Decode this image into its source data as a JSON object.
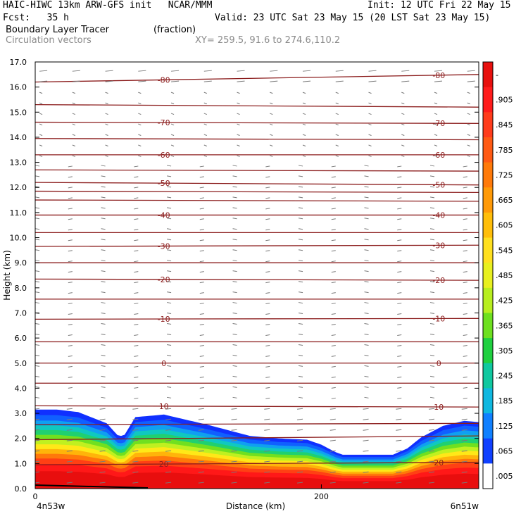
{
  "header": {
    "line1_left": "HAIC-HIWC 13km ARW-GFS init   NCAR/MMM",
    "line1_right": "Init: 12 UTC Fri 22 May 15",
    "line2_left": "Fcst:   35 h",
    "line2_right": "Valid: 23 UTC Sat 23 May 15 (20 LST Sat 23 May 15)",
    "field_name": "Boundary Layer Tracer",
    "field_units": "(fraction)",
    "overlay_name": "Circulation vectors",
    "xy_label": "XY= 259.5, 91.6 to 274.6,110.2"
  },
  "colors": {
    "contour": "#8b1c1c",
    "vector": "#7a7a7a",
    "ground": "#000000"
  },
  "chart_data": {
    "type": "heatmap",
    "xlabel": "Distance (km)",
    "ylabel": "Height (km)",
    "xlim": [
      0,
      310
    ],
    "ylim": [
      0,
      17
    ],
    "x_ticks": [
      0,
      200
    ],
    "x_tick_labels": [
      "0",
      "200"
    ],
    "x_end_labels": [
      "4n53w",
      "6n51w"
    ],
    "y_ticks": [
      0,
      1,
      2,
      3,
      4,
      5,
      6,
      7,
      8,
      9,
      10,
      11,
      12,
      13,
      14,
      15,
      16,
      17
    ],
    "y_tick_labels": [
      "0.0",
      "1.0",
      "2.0",
      "3.0",
      "4.0",
      "5.0",
      "6.0",
      "7.0",
      "8.0",
      "9.0",
      "10.0",
      "11.0",
      "12.0",
      "13.0",
      "14.0",
      "15.0",
      "16.0",
      "17.0"
    ],
    "colorbar": {
      "labels": [
        "-",
        ".905",
        ".845",
        ".785",
        ".725",
        ".665",
        ".605",
        ".545",
        ".485",
        ".425",
        ".365",
        ".305",
        ".245",
        ".185",
        ".125",
        ".065",
        ".005"
      ],
      "colors": [
        "#e8100e",
        "#ff1c1c",
        "#ff3c1c",
        "#ff5a14",
        "#ff7a0a",
        "#ff9a08",
        "#ffbe0a",
        "#ffe020",
        "#e8f020",
        "#b8ee20",
        "#6ee020",
        "#20d040",
        "#10c8a0",
        "#10b8e0",
        "#1080ff",
        "#1040ff",
        "#ffffff"
      ]
    },
    "tracer_top_km": {
      "x_km": [
        0,
        15,
        30,
        50,
        58,
        62,
        70,
        90,
        120,
        150,
        170,
        190,
        200,
        210,
        215,
        230,
        250,
        260,
        270,
        285,
        300,
        310
      ],
      "top": [
        3.15,
        3.15,
        3.05,
        2.6,
        2.1,
        2.1,
        2.85,
        2.95,
        2.55,
        2.1,
        2.0,
        1.95,
        1.75,
        1.45,
        1.35,
        1.35,
        1.35,
        1.6,
        2.05,
        2.5,
        2.7,
        2.65
      ]
    },
    "temperature_contours_C": [
      {
        "label": "20",
        "km": [
          0.95,
          1.05
        ]
      },
      {
        "label": "10",
        "km": [
          3.3,
          3.25
        ]
      },
      {
        "label": "0",
        "km": [
          5.0,
          5.0
        ]
      },
      {
        "label": "-10",
        "km": [
          6.75,
          6.78
        ]
      },
      {
        "label": "-20",
        "km": [
          8.35,
          8.3
        ]
      },
      {
        "label": "-30",
        "km": [
          9.65,
          9.7
        ]
      },
      {
        "label": "-40",
        "km": [
          10.9,
          10.9
        ]
      },
      {
        "label": "-50",
        "km": [
          12.2,
          12.1
        ]
      },
      {
        "label": "-60",
        "km": [
          13.3,
          13.3
        ]
      },
      {
        "label": "-70",
        "km": [
          14.6,
          14.55
        ]
      },
      {
        "label": "-80",
        "km": [
          16.2,
          16.5
        ]
      }
    ],
    "unlabeled_contours_km": [
      [
        1.95,
        2.1
      ],
      [
        2.55,
        2.6
      ],
      [
        4.2,
        4.2
      ],
      [
        5.85,
        5.85
      ],
      [
        7.55,
        7.55
      ],
      [
        9.0,
        9.0
      ],
      [
        10.2,
        10.2
      ],
      [
        11.5,
        11.45
      ],
      [
        11.85,
        11.8
      ],
      [
        12.7,
        12.65
      ],
      [
        13.95,
        13.9
      ],
      [
        15.3,
        15.2
      ]
    ]
  }
}
